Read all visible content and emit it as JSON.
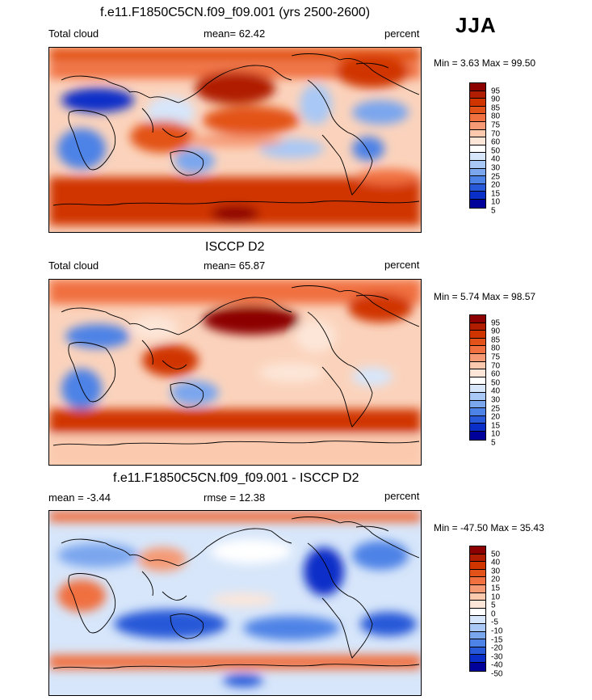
{
  "season": "JJA",
  "panels": [
    {
      "id": "model",
      "title": "f.e11.F1850C5CN.f09_f09.001 (yrs 2500-2600)",
      "left_label": "Total cloud",
      "center_label": "mean=  62.42",
      "units": "percent",
      "minmax": "Min =   3.63 Max =  99.50",
      "levels": [
        "95",
        "90",
        "85",
        "80",
        "75",
        "70",
        "60",
        "50",
        "40",
        "30",
        "25",
        "20",
        "15",
        "10",
        "5"
      ],
      "colors": [
        "#8c0000",
        "#b01d00",
        "#d03500",
        "#e35218",
        "#f07040",
        "#f59a75",
        "#fbc9ad",
        "#fde6d8",
        "#ffffff",
        "#d7e6fa",
        "#a9c8f5",
        "#7aa6ee",
        "#4d82e6",
        "#2759d8",
        "#0a2fc8",
        "#00009a"
      ]
    },
    {
      "id": "obs",
      "title": "ISCCP D2",
      "left_label": "Total cloud",
      "center_label": "mean=  65.87",
      "units": "percent",
      "minmax": "Min =   5.74 Max =  98.57",
      "levels": [
        "95",
        "90",
        "85",
        "80",
        "75",
        "70",
        "60",
        "50",
        "40",
        "30",
        "25",
        "20",
        "15",
        "10",
        "5"
      ],
      "colors": [
        "#8c0000",
        "#b01d00",
        "#d03500",
        "#e35218",
        "#f07040",
        "#f59a75",
        "#fbc9ad",
        "#fde6d8",
        "#ffffff",
        "#d7e6fa",
        "#a9c8f5",
        "#7aa6ee",
        "#4d82e6",
        "#2759d8",
        "#0a2fc8",
        "#00009a"
      ]
    },
    {
      "id": "diff",
      "title": "f.e11.F1850C5CN.f09_f09.001 - ISCCP D2",
      "left_label": "mean =  -3.44",
      "center_label": "rmse =  12.38",
      "units": "percent",
      "minmax": "Min = -47.50 Max =  35.43",
      "levels": [
        "50",
        "40",
        "30",
        "20",
        "15",
        "10",
        "5",
        "0",
        "-5",
        "-10",
        "-15",
        "-20",
        "-30",
        "-40",
        "-50"
      ],
      "colors": [
        "#8c0000",
        "#b01d00",
        "#d03500",
        "#e35218",
        "#f07040",
        "#f59a75",
        "#fbc9ad",
        "#fde6d8",
        "#ffffff",
        "#d7e6fa",
        "#a9c8f5",
        "#7aa6ee",
        "#4d82e6",
        "#2759d8",
        "#0a2fc8",
        "#00009a"
      ]
    }
  ]
}
